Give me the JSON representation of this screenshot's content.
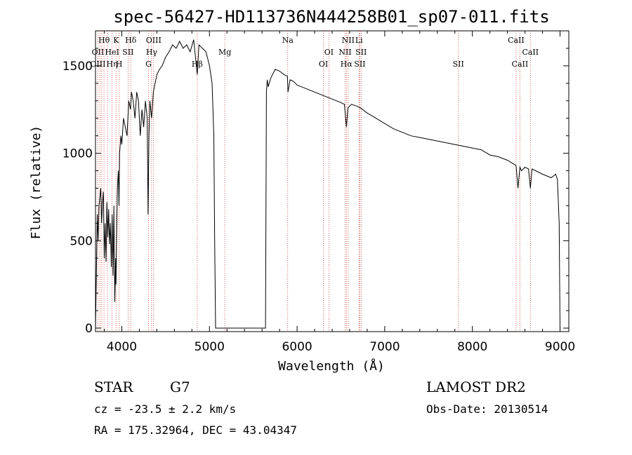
{
  "chart_data": {
    "type": "line",
    "title": "spec-56427-HD113736N444258B01_sp07-011.fits",
    "xlabel": "Wavelength (Å)",
    "ylabel": "Flux (relative)",
    "xlim": [
      3700,
      9100
    ],
    "ylim": [
      -20,
      1700
    ],
    "x_ticks": [
      4000,
      5000,
      6000,
      7000,
      8000,
      9000
    ],
    "y_ticks": [
      0,
      500,
      1000,
      1500
    ],
    "grid": false,
    "series": [
      {
        "x": [
          3700,
          3710,
          3720,
          3730,
          3740,
          3750,
          3760,
          3770,
          3780,
          3790,
          3800,
          3810,
          3820,
          3830,
          3840,
          3850,
          3860,
          3870,
          3880,
          3890,
          3900,
          3910,
          3920,
          3930,
          3934,
          3940,
          3950,
          3960,
          3968,
          3975,
          3990,
          4000,
          4020,
          4040,
          4060,
          4080,
          4100,
          4110,
          4130,
          4150,
          4170,
          4190,
          4210,
          4230,
          4250,
          4270,
          4290,
          4300,
          4310,
          4320,
          4340,
          4360,
          4380,
          4400,
          4430,
          4460,
          4500,
          4540,
          4580,
          4620,
          4660,
          4700,
          4740,
          4780,
          4820,
          4861,
          4880,
          4920,
          4960,
          5000,
          5030,
          5050,
          5060,
          5070,
          5200,
          5400,
          5600,
          5640,
          5650,
          5660,
          5670,
          5700,
          5750,
          5800,
          5850,
          5890,
          5896,
          5920,
          5960,
          6000,
          6050,
          6100,
          6150,
          6200,
          6250,
          6300,
          6350,
          6400,
          6450,
          6500,
          6540,
          6563,
          6580,
          6620,
          6680,
          6720,
          6800,
          6900,
          7000,
          7100,
          7200,
          7300,
          7400,
          7500,
          7600,
          7700,
          7800,
          7900,
          8000,
          8100,
          8200,
          8300,
          8400,
          8498,
          8520,
          8542,
          8560,
          8600,
          8640,
          8662,
          8680,
          8720,
          8760,
          8800,
          8850,
          8900,
          8950,
          8970,
          8990,
          9000,
          9005
        ],
        "y": [
          0,
          300,
          650,
          500,
          700,
          750,
          800,
          600,
          720,
          780,
          400,
          600,
          380,
          720,
          520,
          680,
          480,
          600,
          350,
          650,
          300,
          700,
          150,
          400,
          250,
          500,
          800,
          900,
          700,
          1000,
          1100,
          1050,
          1200,
          1150,
          1100,
          1300,
          1250,
          1350,
          1300,
          1200,
          1350,
          1300,
          1100,
          1250,
          1150,
          1300,
          1200,
          650,
          1100,
          1300,
          1200,
          1350,
          1400,
          1450,
          1480,
          1500,
          1550,
          1580,
          1620,
          1600,
          1640,
          1600,
          1620,
          1580,
          1650,
          1450,
          1620,
          1600,
          1580,
          1500,
          1400,
          1100,
          500,
          0,
          0,
          0,
          0,
          0,
          1350,
          1420,
          1380,
          1430,
          1480,
          1470,
          1450,
          1440,
          1350,
          1420,
          1410,
          1390,
          1380,
          1370,
          1360,
          1350,
          1340,
          1330,
          1320,
          1310,
          1300,
          1290,
          1280,
          1150,
          1260,
          1280,
          1270,
          1260,
          1230,
          1200,
          1170,
          1140,
          1120,
          1100,
          1090,
          1080,
          1070,
          1060,
          1050,
          1040,
          1030,
          1020,
          990,
          980,
          960,
          930,
          800,
          920,
          900,
          920,
          910,
          800,
          910,
          900,
          890,
          880,
          870,
          860,
          880,
          850,
          600,
          0,
          0
        ]
      }
    ],
    "line_labels": [
      {
        "text": "Hθ",
        "wl": 3797,
        "row": 1
      },
      {
        "text": "OII",
        "wl": 3727,
        "row": 2
      },
      {
        "text": "OIII",
        "wl": 3727,
        "row": 3
      },
      {
        "text": "K",
        "wl": 3934,
        "row": 1
      },
      {
        "text": "HeI",
        "wl": 3889,
        "row": 2
      },
      {
        "text": "Hη",
        "wl": 3889,
        "row": 3
      },
      {
        "text": "Hδ",
        "wl": 4102,
        "row": 1
      },
      {
        "text": "SII",
        "wl": 4072,
        "row": 2
      },
      {
        "text": "H",
        "wl": 3968,
        "row": 3
      },
      {
        "text": "OIII",
        "wl": 4363,
        "row": 1
      },
      {
        "text": "Hγ",
        "wl": 4340,
        "row": 2
      },
      {
        "text": "G",
        "wl": 4305,
        "row": 3
      },
      {
        "text": "Hβ",
        "wl": 4861,
        "row": 3
      },
      {
        "text": "Mg",
        "wl": 5175,
        "row": 2
      },
      {
        "text": "Na",
        "wl": 5893,
        "row": 1
      },
      {
        "text": "OI",
        "wl": 6363,
        "row": 2
      },
      {
        "text": "OI",
        "wl": 6300,
        "row": 3
      },
      {
        "text": "NII",
        "wl": 6583,
        "row": 1
      },
      {
        "text": "Li",
        "wl": 6707,
        "row": 1
      },
      {
        "text": "NII",
        "wl": 6548,
        "row": 2
      },
      {
        "text": "SII",
        "wl": 6731,
        "row": 2
      },
      {
        "text": "Hα",
        "wl": 6563,
        "row": 3
      },
      {
        "text": "SII",
        "wl": 6716,
        "row": 3
      },
      {
        "text": "SII",
        "wl": 7840,
        "row": 3
      },
      {
        "text": "CaII",
        "wl": 8498,
        "row": 1
      },
      {
        "text": "CaII",
        "wl": 8662,
        "row": 2
      },
      {
        "text": "CaII",
        "wl": 8542,
        "row": 3
      }
    ],
    "line_markers": [
      3727,
      3750,
      3771,
      3797,
      3835,
      3889,
      3934,
      3968,
      4072,
      4102,
      4305,
      4340,
      4363,
      4861,
      5175,
      5893,
      6300,
      6363,
      6548,
      6563,
      6583,
      6707,
      6716,
      6731,
      7840,
      8498,
      8542,
      8662
    ]
  },
  "info": {
    "object_class": "STAR",
    "subclass": "G7",
    "survey": "LAMOST DR2",
    "cz": "cz = -23.5 ± 2.2 km/s",
    "obs_date": "Obs-Date: 20130514",
    "coords": "RA = 175.32964, DEC =  43.04347"
  }
}
